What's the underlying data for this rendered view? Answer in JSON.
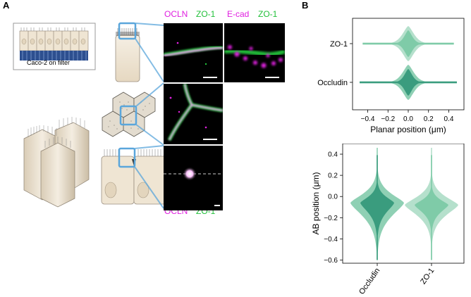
{
  "panel_a": {
    "letter": "A",
    "filter_caption": "Caco-2 on filter",
    "stain_1": {
      "m": "OCLN",
      "g": "ZO-1"
    },
    "stain_2": {
      "m": "E-cad",
      "g": "ZO-1"
    },
    "colors": {
      "magenta": "#e020e0",
      "green": "#22c03a",
      "blue_box": "#5aa6db",
      "cell_fill": "#efe5d3"
    }
  },
  "panel_b": {
    "letter": "B"
  },
  "chart_data": [
    {
      "type": "violin",
      "orientation": "horizontal",
      "categories": [
        "ZO-1",
        "Occludin"
      ],
      "xlabel": "Planar position (μm)",
      "ylabel": "",
      "xlim": [
        -0.55,
        0.55
      ],
      "xticks": [
        -0.4,
        -0.2,
        0.0,
        0.2,
        0.4
      ],
      "xtick_labels": [
        "−0.4",
        "−0.2",
        "0.0",
        "0.2",
        "0.4"
      ],
      "series": [
        {
          "category": "ZO-1",
          "range": [
            -0.45,
            0.45
          ],
          "median": 0.0,
          "iqr": [
            -0.05,
            0.05
          ],
          "outer_color": "#b5e0cc",
          "inner_color": "#7fcba8"
        },
        {
          "category": "Occludin",
          "range": [
            -0.48,
            0.48
          ],
          "median": 0.0,
          "iqr": [
            -0.05,
            0.05
          ],
          "outer_color": "#8fd0b4",
          "inner_color": "#3a9c7e"
        }
      ]
    },
    {
      "type": "violin",
      "orientation": "vertical",
      "categories": [
        "Occludin",
        "ZO-1"
      ],
      "xlabel": "",
      "ylabel": "AB position (μm)",
      "ylim": [
        -0.63,
        0.5
      ],
      "yticks": [
        0.4,
        0.2,
        0.0,
        -0.2,
        -0.4,
        -0.6
      ],
      "ytick_labels": [
        "0.4",
        "0.2",
        "0.0",
        "−0.2",
        "−0.4",
        "−0.6"
      ],
      "series": [
        {
          "category": "Occludin",
          "range": [
            -0.6,
            0.46
          ],
          "median": -0.05,
          "iqr": [
            -0.2,
            0.08
          ],
          "outer_color": "#8fd0b4",
          "inner_color": "#3a9c7e"
        },
        {
          "category": "ZO-1",
          "range": [
            -0.6,
            0.46
          ],
          "median": -0.07,
          "iqr": [
            -0.18,
            0.05
          ],
          "outer_color": "#b5e0cc",
          "inner_color": "#7fcba8"
        }
      ]
    }
  ]
}
